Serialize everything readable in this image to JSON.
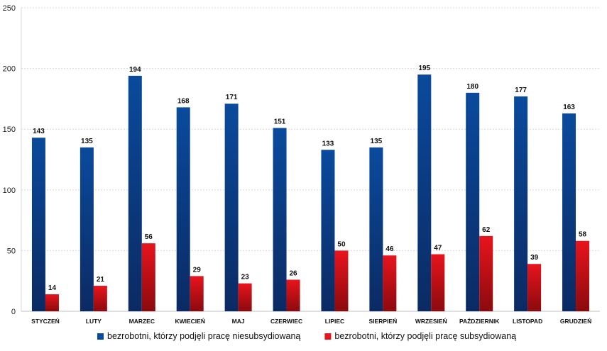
{
  "chart_data": {
    "type": "bar",
    "categories": [
      "STYCZEŃ",
      "LUTY",
      "MARZEC",
      "KWIECIEŃ",
      "MAJ",
      "CZERWIEC",
      "LIPIEC",
      "SIERPIEŃ",
      "WRZESIEŃ",
      "PAŹDZIERNIK",
      "LISTOPAD",
      "GRUDZIEŃ"
    ],
    "series": [
      {
        "name": "bezrobotni, którzy podjęli pracę niesubsydiowaną",
        "values": [
          143,
          135,
          194,
          168,
          171,
          151,
          133,
          135,
          195,
          180,
          177,
          163
        ],
        "color_top": "#0a4a9c",
        "color_bottom": "#0b2a63"
      },
      {
        "name": "bezrobotni, którzy podjęli pracę subsydiowaną",
        "values": [
          14,
          21,
          56,
          29,
          23,
          26,
          50,
          46,
          47,
          62,
          39,
          58
        ],
        "color_top": "#e8141c",
        "color_bottom": "#8a0a0e"
      }
    ],
    "ylim": [
      0,
      250
    ],
    "yticks": [
      0,
      50,
      100,
      150,
      200,
      250
    ],
    "grid": true,
    "legend_position": "bottom",
    "data_labels": true,
    "title": "",
    "xlabel": "",
    "ylabel": ""
  }
}
